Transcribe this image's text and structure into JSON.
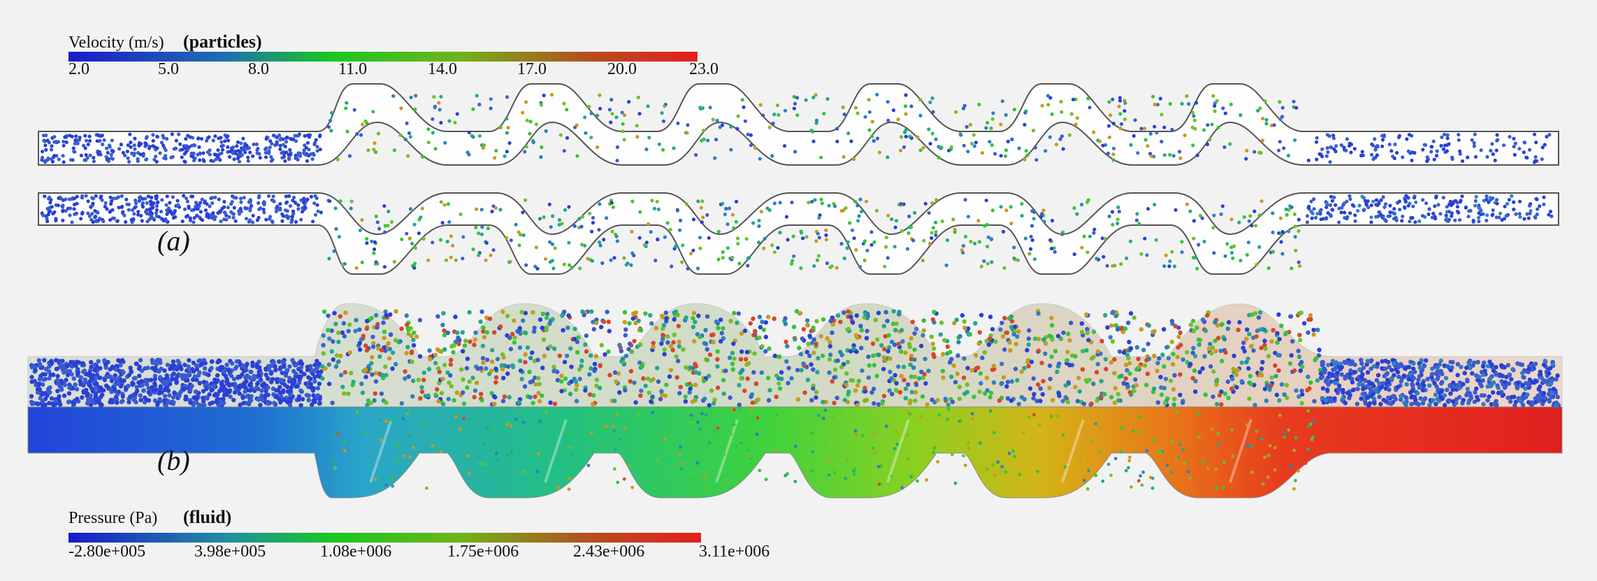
{
  "velocity_colorbar": {
    "title": "Velocity (m/s)",
    "qualifier": "(particles)",
    "ticks": [
      "2.0",
      "5.0",
      "8.0",
      "11.0",
      "14.0",
      "17.0",
      "20.0",
      "23.0"
    ],
    "colors": [
      "#1a1acc",
      "#1f6fb0",
      "#19c81e",
      "#6fb41a",
      "#b4501e",
      "#e61e1e"
    ]
  },
  "pressure_colorbar": {
    "title": "Pressure (Pa)",
    "qualifier": "(fluid)",
    "ticks": [
      "-2.80e+005",
      "3.98e+005",
      "1.08e+006",
      "1.75e+006",
      "2.43e+006",
      "3.11e+006"
    ],
    "colors": [
      "#1a1acc",
      "#1f8fa0",
      "#19c81e",
      "#6fb41a",
      "#b4501e",
      "#e61e1e"
    ]
  },
  "panels": {
    "a_label": "(a)",
    "b_label": "(b)"
  },
  "colors": {
    "background": "#f2f2f2",
    "pipe_outline": "#555555",
    "low": "#1a1acc",
    "mid": "#19c81e",
    "high": "#e61e1e"
  }
}
